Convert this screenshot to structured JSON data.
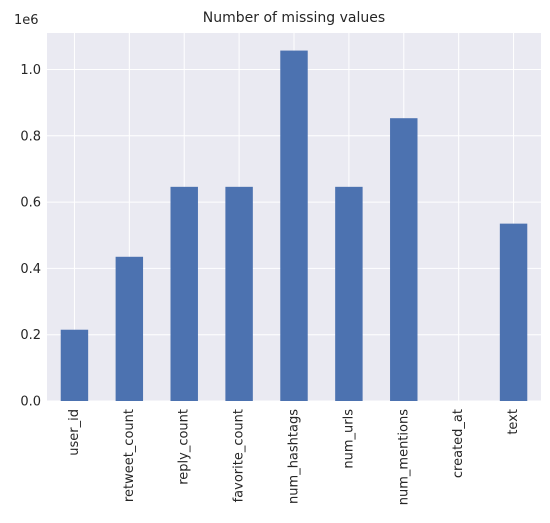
{
  "chart_data": {
    "type": "bar",
    "title": "Number of missing values",
    "xlabel": "",
    "ylabel": "",
    "y_offset_label": "1e6",
    "categories": [
      "user_id",
      "retweet_count",
      "reply_count",
      "favorite_count",
      "num_hashtags",
      "num_urls",
      "num_mentions",
      "created_at",
      "text"
    ],
    "values": [
      0.215,
      0.435,
      0.646,
      0.646,
      1.057,
      0.646,
      0.853,
      0,
      0.535
    ],
    "ylim": [
      0,
      1.11
    ],
    "yticks": [
      0.0,
      0.2,
      0.4,
      0.6,
      0.8,
      1.0
    ],
    "ytick_labels": [
      "0.0",
      "0.2",
      "0.4",
      "0.6",
      "0.8",
      "1.0"
    ],
    "grid": true,
    "legend": "none"
  },
  "colors": {
    "bar": "#4c72b0",
    "plot_background": "#eaeaf2",
    "grid": "#ffffff",
    "text": "#262626"
  }
}
